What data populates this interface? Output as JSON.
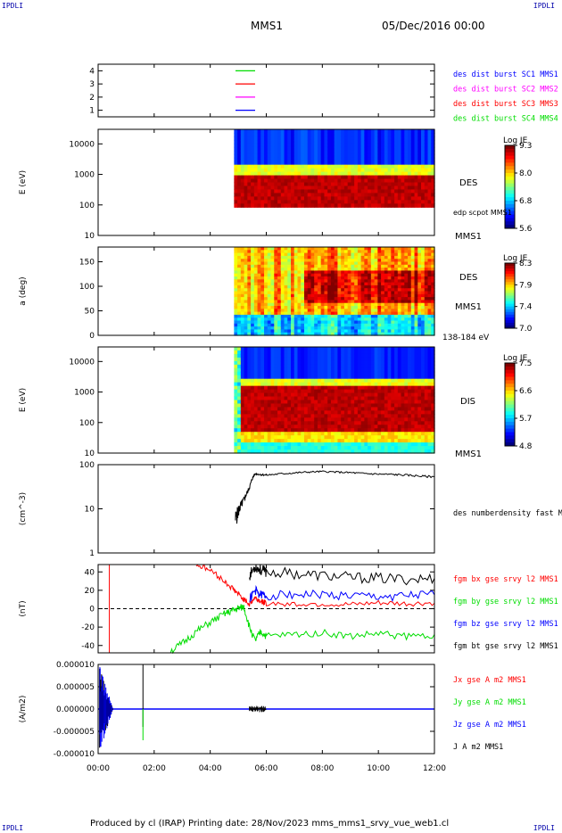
{
  "corner_labels": [
    "IPDLI",
    "IPDLI",
    "IPDLI",
    "IPDLI"
  ],
  "header": {
    "spacecraft": "MMS1",
    "date": "05/Dec/2016 00:00"
  },
  "footer": {
    "text": "Produced by cl (IRAP)   Printing date: 28/Nov/2023   mms_mms1_srvy_vue_web1.cl"
  },
  "colors": {
    "mms1": "#0000ff",
    "mms2": "#ff00ff",
    "mms3": "#ff0000",
    "mms4": "#00dd00",
    "black": "#000000"
  },
  "chart_data": [
    {
      "type": "line",
      "id": "sc_availability",
      "ylabel": "",
      "ylim": [
        0.5,
        4.5
      ],
      "yticks": [
        "1",
        "2",
        "3",
        "4"
      ],
      "legend": [
        {
          "name": "des dist burst SC1 MMS1",
          "color": "#0000ff"
        },
        {
          "name": "des dist burst SC2 MMS2",
          "color": "#ff00ff"
        },
        {
          "name": "des dist burst SC3 MMS3",
          "color": "#ff0000"
        },
        {
          "name": "des dist burst SC4 MMS4",
          "color": "#00dd00"
        }
      ],
      "series": [
        {
          "sc": 4,
          "color": "#00dd00",
          "y": 4
        },
        {
          "sc": 3,
          "color": "#ff0000",
          "y": 3
        },
        {
          "sc": 2,
          "color": "#ff00ff",
          "y": 2
        },
        {
          "sc": 1,
          "color": "#0000ff",
          "y": 1
        }
      ]
    },
    {
      "type": "heatmap",
      "id": "des_energy",
      "ylabel": "E (eV)",
      "yscale": "log",
      "ylim": [
        10,
        30000
      ],
      "yticks": [
        "10",
        "100",
        "1000",
        "10000"
      ],
      "data_start_hour": 4.85,
      "side_labels": [
        "DES",
        "edp scpot MMS1",
        "MMS1"
      ],
      "colorbar": {
        "title": "Log JE",
        "ticks": [
          "9.3",
          "8.0",
          "6.8",
          "5.6"
        ],
        "range": [
          5.6,
          9.3
        ]
      }
    },
    {
      "type": "heatmap",
      "id": "des_pitch",
      "ylabel": "a (deg)",
      "ylim": [
        0,
        180
      ],
      "yticks": [
        "0",
        "50",
        "100",
        "150"
      ],
      "data_start_hour": 4.85,
      "side_labels": [
        "DES",
        "MMS1",
        "138-184 eV"
      ],
      "colorbar": {
        "title": "Log JE",
        "ticks": [
          "8.3",
          "7.9",
          "7.4",
          "7.0"
        ],
        "range": [
          7.0,
          8.3
        ]
      }
    },
    {
      "type": "heatmap",
      "id": "dis_energy",
      "ylabel": "E (eV)",
      "yscale": "log",
      "ylim": [
        10,
        30000
      ],
      "yticks": [
        "10",
        "100",
        "1000",
        "10000"
      ],
      "data_start_hour": 4.85,
      "side_labels": [
        "DIS",
        "MMS1"
      ],
      "colorbar": {
        "title": "Log JE",
        "ticks": [
          "7.5",
          "6.6",
          "5.7",
          "4.8"
        ],
        "range": [
          4.8,
          7.5
        ]
      }
    },
    {
      "type": "line",
      "id": "density",
      "ylabel": "(cm^-3)",
      "yscale": "log",
      "ylim": [
        1,
        100
      ],
      "yticks": [
        "1",
        "10",
        "100"
      ],
      "series": [
        {
          "name": "des numberdensity fast M",
          "color": "#000000",
          "x": [
            4.9,
            5.0,
            5.1,
            5.2,
            5.3,
            5.4,
            5.5,
            5.6,
            5.8,
            6.0,
            6.5,
            7.0,
            7.5,
            8.0,
            8.5,
            9.0,
            9.5,
            10.0,
            10.5,
            11.0,
            11.5,
            12.0
          ],
          "y": [
            6,
            9,
            12,
            16,
            22,
            30,
            48,
            62,
            60,
            58,
            62,
            65,
            68,
            70,
            68,
            66,
            63,
            61,
            60,
            58,
            55,
            53
          ]
        }
      ]
    },
    {
      "type": "line",
      "id": "magnetic_field",
      "ylabel": "(nT)",
      "ylim": [
        -48,
        48
      ],
      "yticks": [
        "-40",
        "-20",
        "0",
        "20",
        "40"
      ],
      "series": [
        {
          "name": "fgm bx gse srvy l2 MMS1",
          "color": "#ff0000",
          "x": [
            3.5,
            4.0,
            4.5,
            4.8,
            5.0,
            5.2,
            5.4,
            5.6,
            5.8,
            6.0,
            7.0,
            8.0,
            9.0,
            10.0,
            11.0,
            12.0
          ],
          "y": [
            48,
            42,
            30,
            22,
            16,
            10,
            5,
            12,
            8,
            6,
            5,
            5,
            4,
            6,
            5,
            6
          ]
        },
        {
          "name": "fgm by gse srvy l2 MMS1",
          "color": "#00dd00",
          "x": [
            2.5,
            3.0,
            3.5,
            4.0,
            4.5,
            4.8,
            5.0,
            5.2,
            5.4,
            5.6,
            5.8,
            6.0,
            7.0,
            8.0,
            9.0,
            10.0,
            11.0,
            12.0
          ],
          "y": [
            -48,
            -38,
            -25,
            -15,
            -6,
            -2,
            0,
            2,
            -20,
            -35,
            -25,
            -30,
            -28,
            -26,
            -30,
            -27,
            -30,
            -28
          ]
        },
        {
          "name": "fgm bz gse srvy l2 MMS1",
          "color": "#0000ff",
          "x": [
            5.4,
            5.6,
            5.8,
            6.0,
            7.0,
            8.0,
            9.0,
            10.0,
            11.0,
            12.0
          ],
          "y": [
            10,
            20,
            15,
            14,
            16,
            15,
            14,
            13,
            14,
            15
          ]
        },
        {
          "name": "fgm bt gse srvy l2 MMS1",
          "color": "#000000",
          "x": [
            5.4,
            5.6,
            5.8,
            6.0,
            7.0,
            8.0,
            9.0,
            10.0,
            11.0,
            12.0
          ],
          "y": [
            36,
            46,
            42,
            40,
            38,
            36,
            34,
            33,
            32,
            33
          ]
        }
      ]
    },
    {
      "type": "line",
      "id": "current_density",
      "ylabel": "(A/m2)",
      "ylim": [
        -1e-05,
        1e-05
      ],
      "yticks": [
        "-0.000010",
        "-0.000005",
        "0.000000",
        "0.000005",
        "0.000010"
      ],
      "xlabel": "",
      "xticks": [
        "00:00",
        "02:00",
        "04:00",
        "06:00",
        "08:00",
        "10:00",
        "12:00"
      ],
      "xlim": [
        0,
        12
      ],
      "series": [
        {
          "name": "Jx gse A m2 MMS1",
          "color": "#ff0000"
        },
        {
          "name": "Jy gse A m2 MMS1",
          "color": "#00dd00"
        },
        {
          "name": "Jz gse A m2 MMS1",
          "color": "#0000ff"
        },
        {
          "name": "J A m2 MMS1",
          "color": "#000000"
        }
      ]
    }
  ]
}
